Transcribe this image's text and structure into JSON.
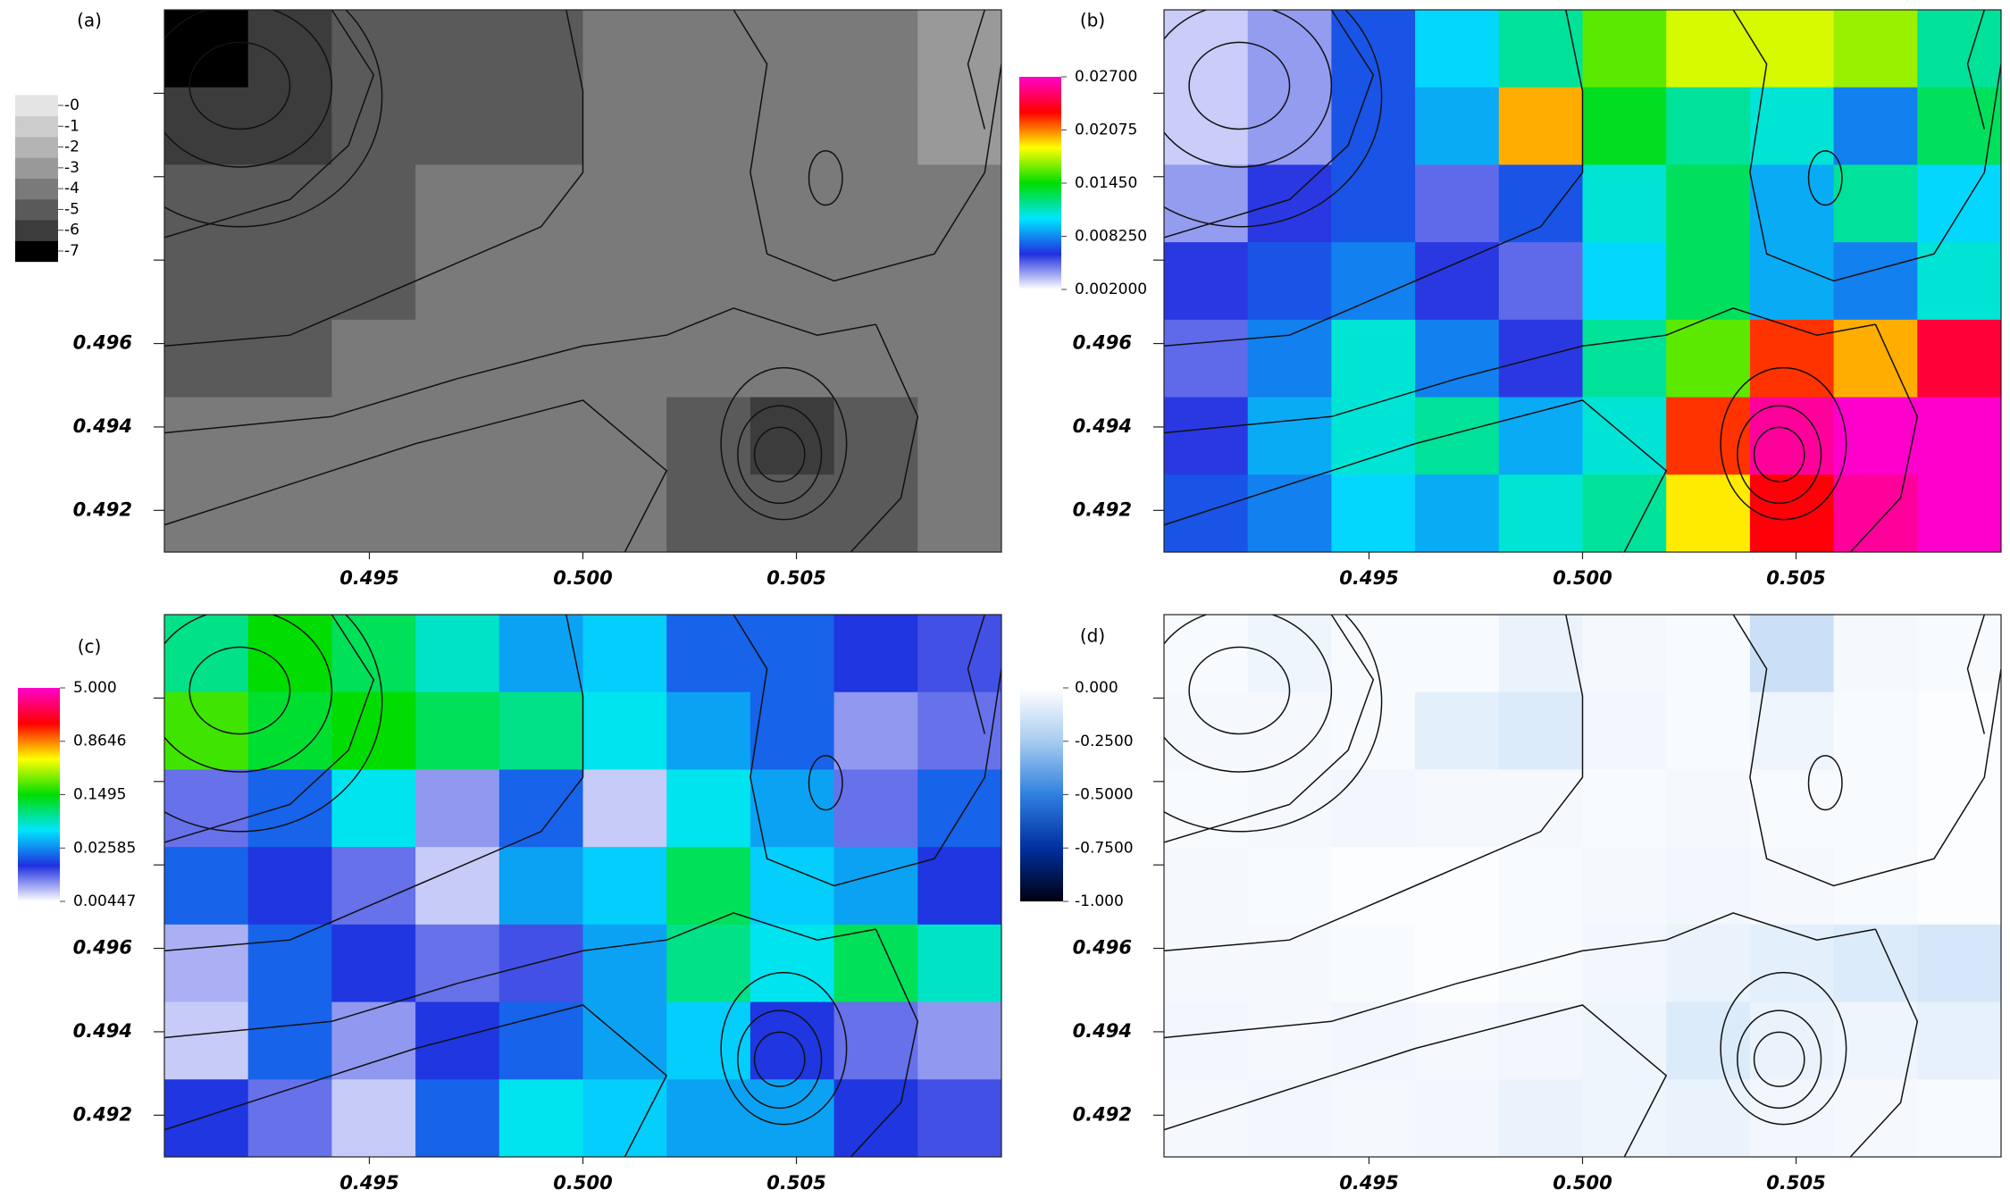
{
  "chart_data": [
    {
      "type": "heatmap",
      "title": "(a)",
      "xlim": [
        0.4902,
        0.5098
      ],
      "ylim": [
        0.491,
        0.504
      ],
      "xticks": [
        0.495,
        {
          "value": 0.5,
          "label": "0.500"
        },
        0.505
      ],
      "yticks": [
        0.492,
        0.494,
        0.496
      ],
      "minor_yticks": [
        0.498,
        0.5,
        0.502
      ],
      "z": [
        [
          -7,
          -6,
          -5,
          -5,
          -5,
          -4,
          -4,
          -4,
          -4,
          -3
        ],
        [
          -6,
          -6,
          -5,
          -5,
          -5,
          -4,
          -4,
          -4,
          -4,
          -3
        ],
        [
          -5,
          -5,
          -5,
          -4,
          -4,
          -4,
          -4,
          -4,
          -4,
          -4
        ],
        [
          -5,
          -5,
          -5,
          -4,
          -4,
          -4,
          -4,
          -4,
          -4,
          -4
        ],
        [
          -5,
          -5,
          -4,
          -4,
          -4,
          -4,
          -4,
          -4,
          -4,
          -4
        ],
        [
          -4,
          -4,
          -4,
          -4,
          -4,
          -4,
          -5,
          -6,
          -5,
          -4
        ],
        [
          -4,
          -4,
          -4,
          -4,
          -4,
          -4,
          -5,
          -5,
          -5,
          -4
        ]
      ],
      "colorbar": {
        "lim": [
          -7,
          0
        ],
        "discrete": true,
        "log": false,
        "colors": [
          "#000000",
          "#3c3c3c",
          "#5a5a5a",
          "#7a7a7a",
          "#999999",
          "#b4b4b4",
          "#cccccc",
          "#e4e4e4"
        ],
        "ticks": [
          {
            "value": 0,
            "label": "-0"
          },
          -1,
          -2,
          -3,
          -4,
          -5,
          -6,
          -7
        ]
      }
    },
    {
      "type": "heatmap",
      "title": "(b)",
      "xlim": [
        0.4902,
        0.5098
      ],
      "ylim": [
        0.491,
        0.504
      ],
      "xticks": [
        0.495,
        {
          "value": 0.5,
          "label": "0.500"
        },
        0.505
      ],
      "yticks": [
        0.492,
        0.494,
        0.496
      ],
      "minor_yticks": [
        0.498,
        0.5,
        0.502
      ],
      "z": [
        [
          0.003,
          0.004,
          0.007,
          0.01,
          0.012,
          0.016,
          0.018,
          0.018,
          0.017,
          0.012
        ],
        [
          0.003,
          0.004,
          0.007,
          0.009,
          0.02,
          0.014,
          0.012,
          0.011,
          0.008,
          0.013
        ],
        [
          0.004,
          0.006,
          0.007,
          0.005,
          0.007,
          0.011,
          0.013,
          0.009,
          0.012,
          0.01
        ],
        [
          0.006,
          0.007,
          0.008,
          0.006,
          0.005,
          0.01,
          0.013,
          0.009,
          0.008,
          0.011
        ],
        [
          0.005,
          0.008,
          0.011,
          0.008,
          0.006,
          0.012,
          0.016,
          0.022,
          0.02,
          0.024
        ],
        [
          0.006,
          0.009,
          0.011,
          0.012,
          0.009,
          0.011,
          0.022,
          0.026,
          0.027,
          0.027
        ],
        [
          0.007,
          0.008,
          0.01,
          0.009,
          0.011,
          0.012,
          0.019,
          0.023,
          0.026,
          0.027
        ]
      ],
      "colorbar": {
        "lim": [
          0.002,
          0.027
        ],
        "discrete": false,
        "log": false,
        "colors": [
          "#ffffff",
          "#2030e0",
          "#00e5ff",
          "#00dd00",
          "#ffff00",
          "#ff0000",
          "#ff00cc"
        ],
        "ticks": [
          {
            "value": 0.027,
            "label": "0.02700"
          },
          {
            "value": 0.02075,
            "label": "0.02075"
          },
          {
            "value": 0.0145,
            "label": "0.01450"
          },
          {
            "value": 0.00825,
            "label": "0.008250"
          },
          {
            "value": 0.002,
            "label": "0.002000"
          }
        ]
      }
    },
    {
      "type": "heatmap",
      "title": "(c)",
      "xlim": [
        0.4902,
        0.5098
      ],
      "ylim": [
        0.491,
        0.504
      ],
      "xticks": [
        0.495,
        {
          "value": 0.5,
          "label": "0.500"
        },
        0.505
      ],
      "yticks": [
        0.492,
        0.494,
        0.496
      ],
      "minor_yticks": [
        0.498,
        0.5,
        0.502
      ],
      "z": [
        [
          0.08,
          0.15,
          0.1,
          0.06,
          0.03,
          0.04,
          0.02,
          0.02,
          0.015,
          0.012
        ],
        [
          0.2,
          0.12,
          0.15,
          0.1,
          0.08,
          0.05,
          0.03,
          0.02,
          0.008,
          0.01
        ],
        [
          0.01,
          0.02,
          0.05,
          0.008,
          0.02,
          0.006,
          0.05,
          0.03,
          0.01,
          0.02
        ],
        [
          0.02,
          0.015,
          0.01,
          0.006,
          0.03,
          0.04,
          0.1,
          0.04,
          0.03,
          0.015
        ],
        [
          0.007,
          0.02,
          0.015,
          0.01,
          0.012,
          0.03,
          0.08,
          0.05,
          0.1,
          0.06
        ],
        [
          0.006,
          0.02,
          0.008,
          0.015,
          0.02,
          0.03,
          0.04,
          0.015,
          0.01,
          0.008
        ],
        [
          0.015,
          0.01,
          0.006,
          0.02,
          0.05,
          0.04,
          0.03,
          0.03,
          0.015,
          0.012
        ]
      ],
      "colorbar": {
        "lim": [
          0.00447,
          5
        ],
        "discrete": false,
        "log": true,
        "colors": [
          "#ffffff",
          "#2030e0",
          "#00e5ff",
          "#00dd00",
          "#ffff00",
          "#ff0000",
          "#ff00cc"
        ],
        "ticks": [
          {
            "value": 5,
            "label": "5.000"
          },
          0.8646,
          0.1495,
          0.02585,
          0.00447
        ]
      }
    },
    {
      "type": "heatmap",
      "title": "(d)",
      "xlim": [
        0.4902,
        0.5098
      ],
      "ylim": [
        0.491,
        0.504
      ],
      "xticks": [
        0.495,
        {
          "value": 0.5,
          "label": "0.500"
        },
        0.505
      ],
      "yticks": [
        0.492,
        0.494,
        0.496
      ],
      "minor_yticks": [
        0.498,
        0.5,
        0.502
      ],
      "z": [
        [
          -0.02,
          -0.05,
          -0.02,
          -0.02,
          -0.06,
          -0.03,
          -0.02,
          -0.15,
          -0.03,
          -0.02
        ],
        [
          -0.03,
          -0.03,
          -0.02,
          -0.08,
          -0.1,
          -0.04,
          -0.02,
          -0.05,
          -0.02,
          -0.01
        ],
        [
          -0.02,
          -0.03,
          -0.04,
          -0.03,
          -0.03,
          -0.02,
          -0.03,
          -0.02,
          -0.02,
          -0.01
        ],
        [
          -0.03,
          -0.02,
          -0.01,
          -0.01,
          -0.02,
          -0.03,
          -0.04,
          -0.03,
          -0.02,
          -0.01
        ],
        [
          -0.03,
          -0.03,
          -0.02,
          -0.01,
          -0.02,
          -0.04,
          -0.06,
          -0.08,
          -0.1,
          -0.12
        ],
        [
          -0.04,
          -0.03,
          -0.04,
          -0.03,
          -0.04,
          -0.05,
          -0.1,
          -0.06,
          -0.05,
          -0.07
        ],
        [
          -0.03,
          -0.04,
          -0.03,
          -0.04,
          -0.06,
          -0.05,
          -0.06,
          -0.04,
          -0.03,
          -0.02
        ]
      ],
      "colorbar": {
        "lim": [
          -1,
          0
        ],
        "discrete": false,
        "log": false,
        "colors": [
          "#000010",
          "#0030a0",
          "#3080e0",
          "#a8ccf0",
          "#ffffff"
        ],
        "ticks": [
          {
            "value": 0,
            "label": "0.000"
          },
          {
            "value": -0.25,
            "label": "-0.2500"
          },
          {
            "value": -0.5,
            "label": "-0.5000"
          },
          {
            "value": -0.75,
            "label": "-0.7500"
          },
          {
            "value": -1,
            "label": "-1.000"
          }
        ]
      }
    }
  ]
}
